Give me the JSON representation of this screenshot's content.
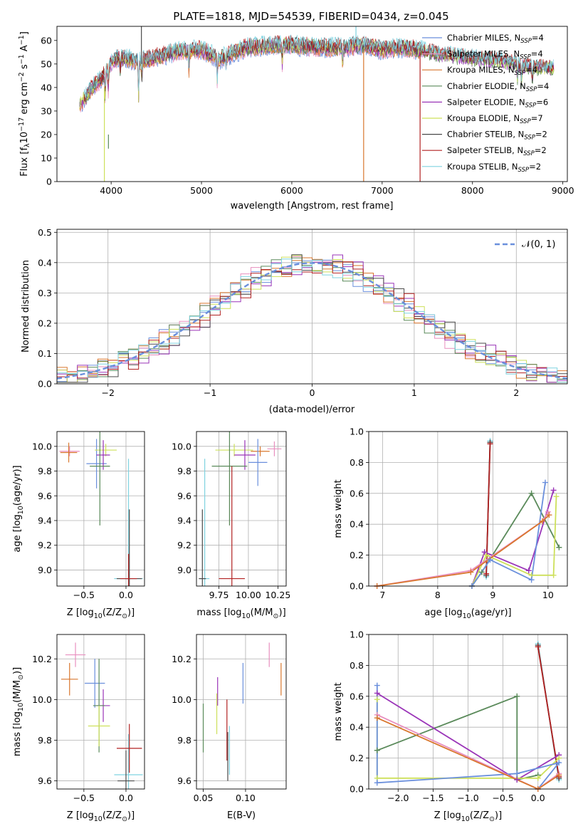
{
  "figure": {
    "title": "PLATE=1818, MJD=54539, FIBERID=0434, z=0.045"
  },
  "colors": {
    "chabrier_miles": "#6a8fdc",
    "salpeter_miles": "#e88fbf",
    "kroupa_miles": "#d9772e",
    "chabrier_elodie": "#5a8a5a",
    "salpeter_elodie": "#9a34b8",
    "kroupa_elodie": "#cde05a",
    "chabrier_stelib": "#4a4a4a",
    "salpeter_stelib": "#b22222",
    "kroupa_stelib": "#7fd3e0",
    "normal": "#6a8fdc",
    "grid": "#b0b0b0"
  },
  "chart_data": [
    {
      "id": "spectrum",
      "type": "line",
      "title": "PLATE=1818, MJD=54539, FIBERID=0434, z=0.045",
      "xlabel": "wavelength [Angstrom, rest frame]",
      "ylabel_parts": [
        "Flux [f",
        "λ",
        "10",
        "−17",
        " erg cm",
        "−2",
        " s",
        "−1",
        " A",
        "−1",
        "]"
      ],
      "xlim": [
        3400,
        9050
      ],
      "ylim": [
        0,
        66
      ],
      "xticks": [
        4000,
        5000,
        6000,
        7000,
        8000,
        9000
      ],
      "yticks": [
        0,
        10,
        20,
        30,
        40,
        50,
        60
      ],
      "grid": false,
      "legend_position": "top-right",
      "legend": [
        {
          "label": "Chabrier MILES, N",
          "sub": "SSP",
          "tail": "=4",
          "color_key": "chabrier_miles"
        },
        {
          "label": "Salpeter MILES, N",
          "sub": "SSP",
          "tail": "=4",
          "color_key": "salpeter_miles"
        },
        {
          "label": "Kroupa MILES, N",
          "sub": "SSP",
          "tail": "=4",
          "color_key": "kroupa_miles"
        },
        {
          "label": "Chabrier ELODIE, N",
          "sub": "SSP",
          "tail": "=4",
          "color_key": "chabrier_elodie"
        },
        {
          "label": "Salpeter ELODIE, N",
          "sub": "SSP",
          "tail": "=6",
          "color_key": "salpeter_elodie"
        },
        {
          "label": "Kroupa ELODIE, N",
          "sub": "SSP",
          "tail": "=7",
          "color_key": "kroupa_elodie"
        },
        {
          "label": "Chabrier STELIB, N",
          "sub": "SSP",
          "tail": "=2",
          "color_key": "chabrier_stelib"
        },
        {
          "label": "Salpeter STELIB, N",
          "sub": "SSP",
          "tail": "=2",
          "color_key": "salpeter_stelib"
        },
        {
          "label": "Kroupa STELIB, N",
          "sub": "SSP",
          "tail": "=2",
          "color_key": "kroupa_stelib"
        }
      ],
      "continuum": [
        [
          3650,
          33
        ],
        [
          3700,
          35
        ],
        [
          3750,
          38
        ],
        [
          3800,
          40
        ],
        [
          3850,
          42
        ],
        [
          3900,
          44
        ],
        [
          3950,
          47
        ],
        [
          4000,
          51
        ],
        [
          4100,
          53
        ],
        [
          4300,
          51
        ],
        [
          4500,
          53
        ],
        [
          4700,
          55
        ],
        [
          5000,
          56
        ],
        [
          5200,
          52
        ],
        [
          5500,
          57
        ],
        [
          5800,
          58
        ],
        [
          6000,
          58
        ],
        [
          6300,
          57
        ],
        [
          6563,
          57
        ],
        [
          6800,
          58
        ],
        [
          7000,
          56
        ],
        [
          7200,
          57
        ],
        [
          7400,
          56
        ],
        [
          7600,
          54
        ],
        [
          8000,
          52
        ],
        [
          8300,
          51
        ],
        [
          8700,
          48
        ],
        [
          8900,
          48
        ]
      ],
      "absorption_features": [
        {
          "wave": 3934,
          "depth": 10
        },
        {
          "wave": 3968,
          "depth": 9
        },
        {
          "wave": 4101,
          "depth": 6
        },
        {
          "wave": 4304,
          "depth": 15
        },
        {
          "wave": 4340,
          "depth": 8
        },
        {
          "wave": 4861,
          "depth": 8
        },
        {
          "wave": 5175,
          "depth": 10
        },
        {
          "wave": 5270,
          "depth": 5
        },
        {
          "wave": 5895,
          "depth": 8
        },
        {
          "wave": 6563,
          "depth": 7
        },
        {
          "wave": 8498,
          "depth": 6
        },
        {
          "wave": 8542,
          "depth": 7
        },
        {
          "wave": 8662,
          "depth": 6
        }
      ],
      "spikes": [
        {
          "wave": 3925,
          "y": [
            0,
            40
          ],
          "color_key": "kroupa_elodie"
        },
        {
          "wave": 3970,
          "y": [
            14,
            20
          ],
          "color_key": "chabrier_elodie"
        },
        {
          "wave": 4335,
          "y": [
            50,
            66
          ],
          "color_key": "chabrier_stelib"
        },
        {
          "wave": 6710,
          "y": [
            61,
            66
          ],
          "color_key": "kroupa_stelib"
        },
        {
          "wave": 6795,
          "y": [
            0,
            55
          ],
          "color_key": "kroupa_miles"
        },
        {
          "wave": 7420,
          "y": [
            0,
            55
          ],
          "color_key": "salpeter_stelib"
        }
      ]
    },
    {
      "id": "residuals",
      "type": "histogram",
      "xlabel": "(data-model)/error",
      "ylabel": "Normed distribution",
      "xlim": [
        -2.5,
        2.5
      ],
      "ylim": [
        0,
        0.51
      ],
      "xticks": [
        -2,
        -1,
        0,
        1,
        2
      ],
      "yticks": [
        0.0,
        0.1,
        0.2,
        0.3,
        0.4,
        0.5
      ],
      "bin_width": 0.1,
      "grid": true,
      "legend_position": "top-right",
      "legend": [
        {
          "label": "𝒩(0, 1)",
          "color_key": "normal",
          "style": "dashed"
        }
      ],
      "series": [
        {
          "color_key": "chabrier_miles",
          "seed": 11
        },
        {
          "color_key": "salpeter_miles",
          "seed": 23
        },
        {
          "color_key": "kroupa_miles",
          "seed": 37
        },
        {
          "color_key": "chabrier_elodie",
          "seed": 41
        },
        {
          "color_key": "salpeter_elodie",
          "seed": 53
        },
        {
          "color_key": "kroupa_elodie",
          "seed": 67
        },
        {
          "color_key": "chabrier_stelib",
          "seed": 71
        },
        {
          "color_key": "salpeter_stelib",
          "seed": 83
        },
        {
          "color_key": "kroupa_stelib",
          "seed": 97
        }
      ]
    },
    {
      "id": "age_vs_Z",
      "type": "errorbar",
      "xlabel_parts": [
        "Z [log",
        "10",
        "(Z/Z",
        "⊙",
        ")]"
      ],
      "ylabel_parts": [
        "age  [log",
        "10",
        "(age/yr)]"
      ],
      "xlim": [
        -0.82,
        0.22
      ],
      "ylim": [
        8.87,
        10.12
      ],
      "xticks": [
        -0.5,
        0.0
      ],
      "yticks": [
        9.0,
        9.2,
        9.4,
        9.6,
        9.8,
        10.0
      ],
      "points": [
        {
          "x": -0.67,
          "y": 9.96,
          "xerr": 0.12,
          "yerr": 0.04,
          "color_key": "salpeter_miles"
        },
        {
          "x": -0.68,
          "y": 9.95,
          "xerr": 0.1,
          "yerr": 0.08,
          "color_key": "kroupa_miles"
        },
        {
          "x": -0.35,
          "y": 9.86,
          "xerr": 0.12,
          "yerr": 0.2,
          "color_key": "chabrier_miles"
        },
        {
          "x": -0.24,
          "y": 9.97,
          "xerr": 0.13,
          "yerr": 0.05,
          "color_key": "kroupa_elodie"
        },
        {
          "x": -0.27,
          "y": 9.93,
          "xerr": 0.08,
          "yerr": 0.12,
          "color_key": "salpeter_elodie"
        },
        {
          "x": -0.31,
          "y": 9.84,
          "xerr": 0.12,
          "yerr": 0.48,
          "color_key": "chabrier_elodie"
        },
        {
          "x": 0.03,
          "y": 8.93,
          "xerr": 0.17,
          "yerr": 0.97,
          "color_key": "kroupa_stelib"
        },
        {
          "x": 0.04,
          "y": 8.93,
          "xerr": 0.15,
          "yerr": 0.56,
          "color_key": "chabrier_stelib"
        },
        {
          "x": 0.03,
          "y": 8.93,
          "xerr": 0.1,
          "yerr": 0.2,
          "color_key": "salpeter_stelib"
        }
      ]
    },
    {
      "id": "age_vs_mass",
      "type": "errorbar",
      "xlabel_parts": [
        "mass [log",
        "10",
        "(M/M",
        "⊙",
        ")]"
      ],
      "ylabel": "",
      "xlim": [
        9.56,
        10.32
      ],
      "ylim": [
        8.87,
        10.12
      ],
      "xticks": [
        9.75,
        10.0,
        10.25
      ],
      "yticks": [
        9.0,
        9.2,
        9.4,
        9.6,
        9.8,
        10.0
      ],
      "points": [
        {
          "x": 10.22,
          "y": 9.98,
          "xerr": 0.06,
          "yerr": 0.06,
          "color_key": "salpeter_miles"
        },
        {
          "x": 10.1,
          "y": 9.96,
          "xerr": 0.08,
          "yerr": 0.04,
          "color_key": "kroupa_miles"
        },
        {
          "x": 10.08,
          "y": 9.87,
          "xerr": 0.08,
          "yerr": 0.19,
          "color_key": "chabrier_miles"
        },
        {
          "x": 9.88,
          "y": 9.97,
          "xerr": 0.16,
          "yerr": 0.05,
          "color_key": "kroupa_elodie"
        },
        {
          "x": 9.97,
          "y": 9.93,
          "xerr": 0.09,
          "yerr": 0.12,
          "color_key": "salpeter_elodie"
        },
        {
          "x": 9.84,
          "y": 9.84,
          "xerr": 0.15,
          "yerr": 0.48,
          "color_key": "chabrier_elodie"
        },
        {
          "x": 9.63,
          "y": 8.93,
          "xerr": 0.04,
          "yerr": 0.97,
          "color_key": "kroupa_stelib"
        },
        {
          "x": 9.61,
          "y": 8.93,
          "xerr": 0.03,
          "yerr": 0.56,
          "color_key": "chabrier_stelib"
        },
        {
          "x": 9.86,
          "y": 8.93,
          "xerr": 0.11,
          "yerr": 0.91,
          "color_key": "salpeter_stelib"
        }
      ]
    },
    {
      "id": "weight_vs_age",
      "type": "line",
      "xlabel_parts": [
        "age  [log",
        "10",
        "(age/yr)]"
      ],
      "ylabel": "mass weight",
      "xlim": [
        6.75,
        10.35
      ],
      "ylim": [
        0,
        1.0
      ],
      "xticks": [
        7,
        8,
        9,
        10
      ],
      "yticks": [
        0.0,
        0.2,
        0.4,
        0.6,
        0.8,
        1.0
      ],
      "grid": true,
      "series": [
        {
          "color_key": "kroupa_stelib",
          "x": [
            8.88,
            8.95
          ],
          "y": [
            0.06,
            0.94
          ]
        },
        {
          "color_key": "chabrier_stelib",
          "x": [
            8.88,
            8.95
          ],
          "y": [
            0.07,
            0.93
          ]
        },
        {
          "color_key": "salpeter_stelib",
          "x": [
            8.88,
            8.95
          ],
          "y": [
            0.08,
            0.92
          ]
        },
        {
          "color_key": "chabrier_elodie",
          "x": [
            8.62,
            8.8,
            9.7,
            10.2
          ],
          "y": [
            0.0,
            0.09,
            0.6,
            0.25
          ]
        },
        {
          "color_key": "salpeter_elodie",
          "x": [
            8.62,
            8.85,
            9.65,
            10.1
          ],
          "y": [
            0.0,
            0.22,
            0.1,
            0.62
          ]
        },
        {
          "color_key": "kroupa_elodie",
          "x": [
            8.62,
            8.88,
            9.7,
            10.1,
            10.15
          ],
          "y": [
            0.0,
            0.2,
            0.07,
            0.07,
            0.58
          ]
        },
        {
          "color_key": "chabrier_miles",
          "x": [
            8.62,
            8.95,
            9.7,
            9.95
          ],
          "y": [
            0.0,
            0.17,
            0.04,
            0.67
          ]
        },
        {
          "color_key": "salpeter_miles",
          "x": [
            6.9,
            8.6,
            9.9,
            10.0
          ],
          "y": [
            0.0,
            0.1,
            0.42,
            0.48
          ]
        },
        {
          "color_key": "kroupa_miles",
          "x": [
            6.9,
            8.6,
            9.9,
            10.02
          ],
          "y": [
            0.0,
            0.09,
            0.42,
            0.46
          ]
        }
      ]
    },
    {
      "id": "mass_vs_Z",
      "type": "errorbar",
      "xlabel_parts": [
        "Z [log",
        "10",
        "(Z/Z",
        "⊙",
        ")]"
      ],
      "ylabel_parts": [
        "mass [log",
        "10",
        "(M/M",
        "⊙",
        ")]"
      ],
      "xlim": [
        -0.82,
        0.22
      ],
      "ylim": [
        9.56,
        10.32
      ],
      "xticks": [
        -0.5,
        0.0
      ],
      "yticks": [
        9.6,
        9.8,
        10.0,
        10.2
      ],
      "points": [
        {
          "x": -0.6,
          "y": 10.22,
          "xerr": 0.12,
          "yerr": 0.06,
          "color_key": "salpeter_miles"
        },
        {
          "x": -0.67,
          "y": 10.1,
          "xerr": 0.1,
          "yerr": 0.08,
          "color_key": "kroupa_miles"
        },
        {
          "x": -0.37,
          "y": 10.08,
          "xerr": 0.12,
          "yerr": 0.12,
          "color_key": "chabrier_miles"
        },
        {
          "x": -0.27,
          "y": 9.97,
          "xerr": 0.08,
          "yerr": 0.08,
          "color_key": "salpeter_elodie"
        },
        {
          "x": -0.32,
          "y": 9.97,
          "xerr": 0.07,
          "yerr": 0.23,
          "color_key": "chabrier_elodie"
        },
        {
          "x": -0.32,
          "y": 9.87,
          "xerr": 0.13,
          "yerr": 0.1,
          "color_key": "kroupa_elodie"
        },
        {
          "x": 0.03,
          "y": 9.63,
          "xerr": 0.17,
          "yerr": 0.2,
          "color_key": "kroupa_stelib"
        },
        {
          "x": 0.04,
          "y": 9.76,
          "xerr": 0.15,
          "yerr": 0.12,
          "color_key": "salpeter_stelib"
        },
        {
          "x": 0.0,
          "y": 9.6,
          "xerr": 0.1,
          "yerr": 0.15,
          "color_key": "chabrier_stelib"
        }
      ]
    },
    {
      "id": "mass_vs_EBV",
      "type": "errorbar",
      "xlabel": "E(B-V)",
      "ylabel": "",
      "xlim": [
        0.042,
        0.148
      ],
      "ylim": [
        9.56,
        10.32
      ],
      "xticks": [
        0.05,
        0.1
      ],
      "yticks": [
        9.6,
        9.8,
        10.0,
        10.2
      ],
      "points": [
        {
          "x": 0.128,
          "y": 10.22,
          "xerr": 0,
          "yerr": 0.06,
          "color_key": "salpeter_miles"
        },
        {
          "x": 0.142,
          "y": 10.1,
          "xerr": 0,
          "yerr": 0.08,
          "color_key": "kroupa_miles"
        },
        {
          "x": 0.097,
          "y": 10.08,
          "xerr": 0,
          "yerr": 0.1,
          "color_key": "chabrier_miles"
        },
        {
          "x": 0.067,
          "y": 10.04,
          "xerr": 0,
          "yerr": 0.07,
          "color_key": "salpeter_elodie"
        },
        {
          "x": 0.05,
          "y": 9.86,
          "xerr": 0,
          "yerr": 0.12,
          "color_key": "chabrier_elodie"
        },
        {
          "x": 0.066,
          "y": 9.93,
          "xerr": 0,
          "yerr": 0.1,
          "color_key": "kroupa_elodie"
        },
        {
          "x": 0.081,
          "y": 9.75,
          "xerr": 0,
          "yerr": 0.12,
          "color_key": "kroupa_stelib"
        },
        {
          "x": 0.078,
          "y": 9.85,
          "xerr": 0,
          "yerr": 0.15,
          "color_key": "salpeter_stelib"
        },
        {
          "x": 0.079,
          "y": 9.72,
          "xerr": 0,
          "yerr": 0.12,
          "color_key": "chabrier_stelib"
        }
      ]
    },
    {
      "id": "weight_vs_Z",
      "type": "line",
      "xlabel_parts": [
        "Z [log",
        "10",
        "(Z/Z",
        "⊙",
        ")]"
      ],
      "ylabel": "mass weight",
      "xlim": [
        -2.42,
        0.42
      ],
      "ylim": [
        0,
        1.0
      ],
      "xticks": [
        -2.0,
        -1.5,
        -1.0,
        -0.5,
        0.0
      ],
      "yticks": [
        0.0,
        0.2,
        0.4,
        0.6,
        0.8,
        1.0
      ],
      "grid": true,
      "series": [
        {
          "color_key": "kroupa_stelib",
          "x": [
            0.0,
            0.3
          ],
          "y": [
            0.94,
            0.06
          ]
        },
        {
          "color_key": "chabrier_stelib",
          "x": [
            0.0,
            0.3
          ],
          "y": [
            0.93,
            0.07
          ]
        },
        {
          "color_key": "salpeter_stelib",
          "x": [
            0.0,
            0.3
          ],
          "y": [
            0.92,
            0.08
          ]
        },
        {
          "color_key": "chabrier_elodie",
          "x": [
            -2.3,
            -0.3,
            -0.3,
            0.0
          ],
          "y": [
            0.25,
            0.6,
            0.06,
            0.09
          ]
        },
        {
          "color_key": "salpeter_elodie",
          "x": [
            -2.3,
            -0.3,
            0.3
          ],
          "y": [
            0.62,
            0.06,
            0.22
          ]
        },
        {
          "color_key": "kroupa_elodie",
          "x": [
            -2.3,
            -2.3,
            0.0,
            0.3
          ],
          "y": [
            0.58,
            0.07,
            0.07,
            0.2
          ]
        },
        {
          "color_key": "chabrier_miles",
          "x": [
            -2.3,
            -2.3,
            -0.3,
            0.3,
            0.0
          ],
          "y": [
            0.67,
            0.04,
            0.1,
            0.17,
            0.0
          ]
        },
        {
          "color_key": "salpeter_miles",
          "x": [
            -2.3,
            0.0,
            0.3
          ],
          "y": [
            0.48,
            0.0,
            0.1
          ]
        },
        {
          "color_key": "kroupa_miles",
          "x": [
            -2.3,
            0.0,
            0.3
          ],
          "y": [
            0.46,
            0.0,
            0.09
          ]
        }
      ]
    }
  ]
}
